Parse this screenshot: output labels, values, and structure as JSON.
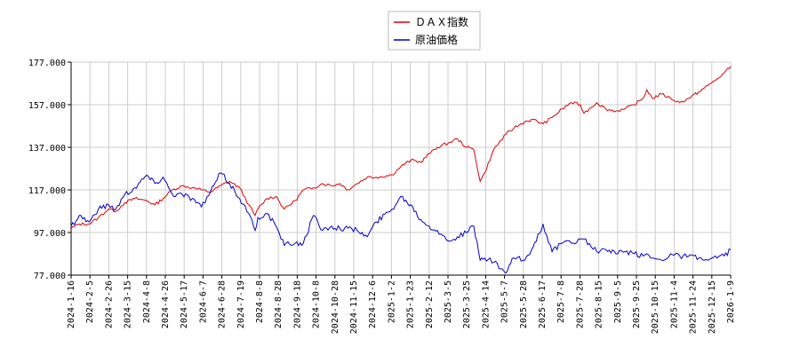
{
  "chart_data": {
    "type": "line",
    "title": "",
    "xlabel": "",
    "ylabel": "",
    "ylim": [
      77,
      177
    ],
    "yticks": [
      "177.000",
      "157.000",
      "137.000",
      "117.000",
      "97.000",
      "77.000"
    ],
    "ytick_values": [
      177,
      157,
      137,
      117,
      97,
      77
    ],
    "xlim": [
      "2024-01-16",
      "2026-01-09"
    ],
    "xticks": [
      "2024-1-16",
      "2024-2-5",
      "2024-2-26",
      "2024-3-15",
      "2024-4-8",
      "2024-4-26",
      "2024-5-17",
      "2024-6-7",
      "2024-6-28",
      "2024-7-19",
      "2024-8-8",
      "2024-8-28",
      "2024-9-18",
      "2024-10-8",
      "2024-10-28",
      "2024-11-15",
      "2024-12-6",
      "2025-1-2",
      "2025-1-23",
      "2025-2-12",
      "2025-3-5",
      "2025-3-25",
      "2025-4-14",
      "2025-5-7",
      "2025-5-28",
      "2025-6-17",
      "2025-7-8",
      "2025-7-28",
      "2025-8-15",
      "2025-9-5",
      "2025-9-25",
      "2025-10-15",
      "2025-11-4",
      "2025-11-24",
      "2025-12-15",
      "2026-1-9"
    ],
    "grid": true,
    "legend_position": "top-center",
    "series": [
      {
        "name": "ＤＡＸ指数",
        "color": "#dd0000",
        "points": [
          [
            "2024-01-16",
            99
          ],
          [
            "2024-01-25",
            101
          ],
          [
            "2024-02-05",
            101
          ],
          [
            "2024-02-15",
            104
          ],
          [
            "2024-02-26",
            108
          ],
          [
            "2024-03-05",
            107
          ],
          [
            "2024-03-15",
            111
          ],
          [
            "2024-03-26",
            113
          ],
          [
            "2024-04-08",
            112
          ],
          [
            "2024-04-17",
            110
          ],
          [
            "2024-04-26",
            113
          ],
          [
            "2024-05-06",
            117
          ],
          [
            "2024-05-17",
            119
          ],
          [
            "2024-05-28",
            118
          ],
          [
            "2024-06-07",
            117
          ],
          [
            "2024-06-17",
            116
          ],
          [
            "2024-06-28",
            119
          ],
          [
            "2024-07-08",
            121
          ],
          [
            "2024-07-19",
            118
          ],
          [
            "2024-07-29",
            110
          ],
          [
            "2024-08-05",
            105
          ],
          [
            "2024-08-08",
            108
          ],
          [
            "2024-08-18",
            113
          ],
          [
            "2024-08-28",
            114
          ],
          [
            "2024-09-06",
            108
          ],
          [
            "2024-09-18",
            112
          ],
          [
            "2024-09-27",
            117
          ],
          [
            "2024-10-08",
            118
          ],
          [
            "2024-10-18",
            120
          ],
          [
            "2024-10-28",
            119
          ],
          [
            "2024-11-06",
            120
          ],
          [
            "2024-11-15",
            117
          ],
          [
            "2024-11-25",
            120
          ],
          [
            "2024-12-06",
            123
          ],
          [
            "2024-12-16",
            123
          ],
          [
            "2025-01-02",
            124
          ],
          [
            "2025-01-12",
            128
          ],
          [
            "2025-01-23",
            131
          ],
          [
            "2025-02-03",
            130
          ],
          [
            "2025-02-12",
            134
          ],
          [
            "2025-02-21",
            137
          ],
          [
            "2025-03-05",
            139
          ],
          [
            "2025-03-15",
            141
          ],
          [
            "2025-03-25",
            137
          ],
          [
            "2025-04-02",
            136
          ],
          [
            "2025-04-09",
            121
          ],
          [
            "2025-04-14",
            125
          ],
          [
            "2025-04-24",
            136
          ],
          [
            "2025-05-07",
            143
          ],
          [
            "2025-05-16",
            146
          ],
          [
            "2025-05-28",
            149
          ],
          [
            "2025-06-06",
            150
          ],
          [
            "2025-06-17",
            148
          ],
          [
            "2025-06-27",
            151
          ],
          [
            "2025-07-08",
            155
          ],
          [
            "2025-07-18",
            158
          ],
          [
            "2025-07-28",
            157
          ],
          [
            "2025-08-01",
            153
          ],
          [
            "2025-08-15",
            158
          ],
          [
            "2025-08-25",
            155
          ],
          [
            "2025-09-05",
            154
          ],
          [
            "2025-09-15",
            155
          ],
          [
            "2025-09-25",
            157
          ],
          [
            "2025-10-05",
            160
          ],
          [
            "2025-10-09",
            164
          ],
          [
            "2025-10-15",
            160
          ],
          [
            "2025-10-25",
            162
          ],
          [
            "2025-11-04",
            160
          ],
          [
            "2025-11-14",
            158
          ],
          [
            "2025-11-24",
            160
          ],
          [
            "2025-12-05",
            163
          ],
          [
            "2025-12-15",
            166
          ],
          [
            "2025-12-25",
            169
          ],
          [
            "2026-01-02",
            172
          ],
          [
            "2026-01-09",
            175
          ]
        ]
      },
      {
        "name": "原油価格",
        "color": "#0000cc",
        "points": [
          [
            "2024-01-16",
            100
          ],
          [
            "2024-01-25",
            105
          ],
          [
            "2024-02-05",
            102
          ],
          [
            "2024-02-15",
            108
          ],
          [
            "2024-02-26",
            110
          ],
          [
            "2024-03-05",
            108
          ],
          [
            "2024-03-15",
            115
          ],
          [
            "2024-03-26",
            118
          ],
          [
            "2024-04-08",
            124
          ],
          [
            "2024-04-17",
            120
          ],
          [
            "2024-04-26",
            123
          ],
          [
            "2024-05-06",
            115
          ],
          [
            "2024-05-17",
            115
          ],
          [
            "2024-05-28",
            113
          ],
          [
            "2024-06-07",
            109
          ],
          [
            "2024-06-17",
            116
          ],
          [
            "2024-06-28",
            125
          ],
          [
            "2024-07-08",
            120
          ],
          [
            "2024-07-19",
            113
          ],
          [
            "2024-07-29",
            106
          ],
          [
            "2024-08-05",
            98
          ],
          [
            "2024-08-08",
            104
          ],
          [
            "2024-08-18",
            106
          ],
          [
            "2024-08-28",
            100
          ],
          [
            "2024-09-06",
            91
          ],
          [
            "2024-09-18",
            92
          ],
          [
            "2024-09-27",
            92
          ],
          [
            "2024-10-08",
            105
          ],
          [
            "2024-10-18",
            98
          ],
          [
            "2024-10-28",
            100
          ],
          [
            "2024-11-06",
            99
          ],
          [
            "2024-11-15",
            99
          ],
          [
            "2024-11-25",
            98
          ],
          [
            "2024-12-06",
            95
          ],
          [
            "2024-12-16",
            102
          ],
          [
            "2025-01-02",
            108
          ],
          [
            "2025-01-12",
            114
          ],
          [
            "2025-01-23",
            110
          ],
          [
            "2025-02-03",
            103
          ],
          [
            "2025-02-12",
            100
          ],
          [
            "2025-02-21",
            98
          ],
          [
            "2025-03-05",
            93
          ],
          [
            "2025-03-15",
            95
          ],
          [
            "2025-03-25",
            97
          ],
          [
            "2025-04-02",
            100
          ],
          [
            "2025-04-09",
            84
          ],
          [
            "2025-04-14",
            85
          ],
          [
            "2025-04-24",
            83
          ],
          [
            "2025-05-07",
            78
          ],
          [
            "2025-05-16",
            85
          ],
          [
            "2025-05-28",
            84
          ],
          [
            "2025-06-06",
            90
          ],
          [
            "2025-06-17",
            101
          ],
          [
            "2025-06-27",
            88
          ],
          [
            "2025-07-08",
            92
          ],
          [
            "2025-07-18",
            92
          ],
          [
            "2025-07-28",
            94
          ],
          [
            "2025-08-01",
            94
          ],
          [
            "2025-08-15",
            88
          ],
          [
            "2025-08-25",
            89
          ],
          [
            "2025-09-05",
            87
          ],
          [
            "2025-09-15",
            88
          ],
          [
            "2025-09-25",
            87
          ],
          [
            "2025-10-05",
            86
          ],
          [
            "2025-10-09",
            87
          ],
          [
            "2025-10-15",
            85
          ],
          [
            "2025-10-25",
            84
          ],
          [
            "2025-11-04",
            87
          ],
          [
            "2025-11-14",
            86
          ],
          [
            "2025-11-24",
            86
          ],
          [
            "2025-12-05",
            85
          ],
          [
            "2025-12-15",
            84
          ],
          [
            "2025-12-25",
            85
          ],
          [
            "2026-01-02",
            86
          ],
          [
            "2026-01-09",
            89
          ]
        ]
      }
    ]
  }
}
